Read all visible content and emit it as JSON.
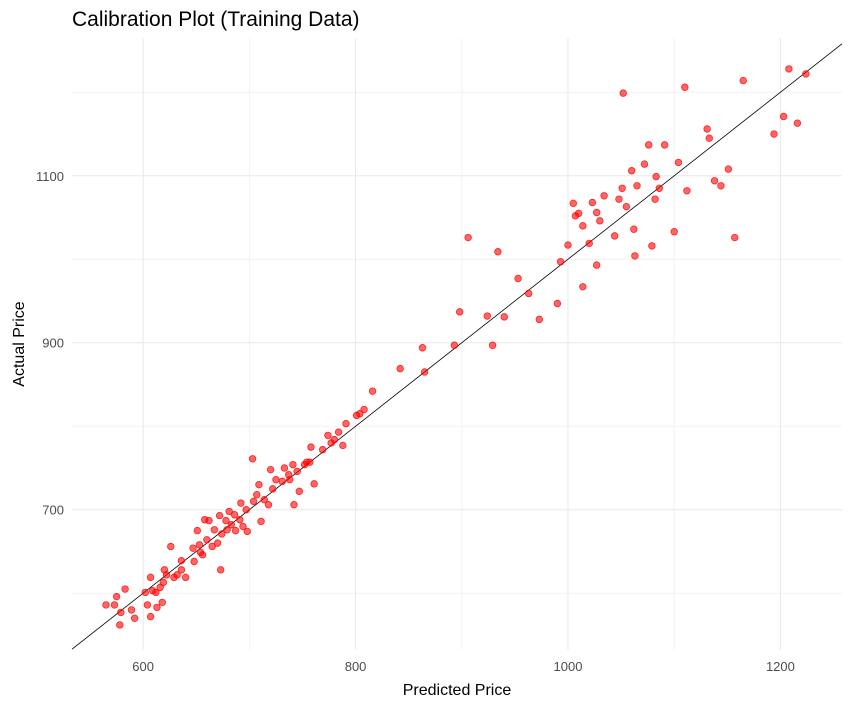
{
  "chart_data": {
    "type": "scatter",
    "title": "Calibration Plot (Training Data)",
    "x_label": "Predicted Price",
    "y_label": "Actual Price",
    "xlim": [
      533,
      1258
    ],
    "ylim": [
      532,
      1265
    ],
    "xticks": [
      600,
      800,
      1000,
      1200
    ],
    "yticks": [
      700,
      900,
      1100
    ],
    "xminor": [
      700,
      900,
      1100
    ],
    "yminor": [
      600,
      800,
      1000,
      1200
    ],
    "grid": true,
    "color": "#ff0000",
    "x": [
      565,
      575,
      573,
      579,
      583,
      578,
      589,
      592,
      602,
      604,
      607,
      607,
      609,
      612,
      613,
      616,
      618,
      619,
      620,
      622,
      626,
      629,
      632,
      636,
      636,
      640,
      647,
      648,
      651,
      653,
      654,
      656,
      658,
      660,
      662,
      665,
      667,
      670,
      672,
      673,
      674,
      678,
      679,
      681,
      683,
      686,
      687,
      691,
      692,
      694,
      697,
      698,
      703,
      704,
      707,
      709,
      711,
      714,
      718,
      720,
      722,
      725,
      731,
      733,
      737,
      738,
      741,
      742,
      745,
      747,
      752,
      754,
      757,
      758,
      761,
      769,
      774,
      777,
      780,
      784,
      788,
      791,
      801,
      804,
      808,
      816,
      842,
      863,
      865,
      893,
      898,
      906,
      924,
      929,
      934,
      940,
      953,
      963,
      973,
      990,
      993,
      1000,
      1005,
      1007,
      1010,
      1014,
      1014,
      1020,
      1023,
      1027,
      1027,
      1030,
      1034,
      1044,
      1048,
      1051,
      1052,
      1055,
      1060,
      1062,
      1063,
      1065,
      1072,
      1076,
      1079,
      1082,
      1083,
      1086,
      1091,
      1100,
      1104,
      1110,
      1112,
      1131,
      1133,
      1138,
      1144,
      1151,
      1157,
      1165,
      1194,
      1203,
      1208,
      1216,
      1224
    ],
    "values": [
      586,
      596,
      586,
      577,
      605,
      562,
      580,
      570,
      601,
      586,
      619,
      572,
      603,
      601,
      583,
      607,
      589,
      613,
      628,
      622,
      656,
      619,
      622,
      628,
      639,
      619,
      654,
      638,
      675,
      658,
      649,
      646,
      688,
      664,
      687,
      656,
      676,
      660,
      693,
      628,
      671,
      687,
      676,
      698,
      682,
      694,
      675,
      688,
      708,
      680,
      700,
      674,
      761,
      710,
      718,
      730,
      686,
      712,
      706,
      748,
      725,
      736,
      734,
      750,
      742,
      736,
      754,
      706,
      746,
      722,
      754,
      757,
      757,
      775,
      731,
      772,
      789,
      780,
      784,
      793,
      777,
      803,
      813,
      815,
      820,
      842,
      869,
      894,
      865,
      897,
      937,
      1026,
      932,
      897,
      1009,
      931,
      977,
      959,
      928,
      947,
      997,
      1017,
      1067,
      1052,
      1055,
      1040,
      967,
      1019,
      1068,
      1056,
      993,
      1046,
      1076,
      1028,
      1072,
      1085,
      1199,
      1063,
      1106,
      1036,
      1004,
      1088,
      1114,
      1137,
      1016,
      1072,
      1099,
      1085,
      1137,
      1033,
      1116,
      1206,
      1082,
      1156,
      1145,
      1094,
      1088,
      1108,
      1026,
      1214,
      1150,
      1171,
      1228,
      1163,
      1222
    ]
  }
}
